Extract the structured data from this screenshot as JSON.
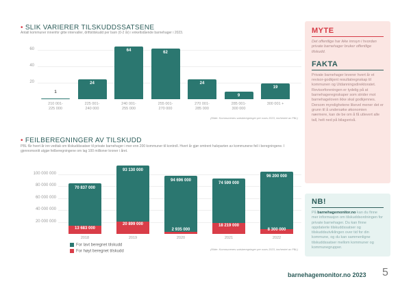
{
  "section1": {
    "title": "SLIK VARIERER TILSKUDDSSATSENE",
    "subtitle": "Antall kommuner innenfor gitte intervaller, driftstilskudd per barn (0-2 år) i enkeltstående barnehager i 2023.",
    "source": "(Kilde: Kommunenes satsberegninger per mars 2023, innhentet av PBL)"
  },
  "section2": {
    "title": "FEILBEREGNINGER AV TILSKUDD",
    "subtitle": "PBL får hvert år inn vedtak om tilskuddssatser til private barnehager i mer enn 200 kommuner til kontroll. Hvert år gjør omtrent halvparten av kommunene feil i beregningene. I gjennomsnitt utgjør feilberegningene om lag 100 millioner kroner i året.",
    "source": "(Kilde: Kommunenes satsberegninger per mars 2023, innhentet av PBL)"
  },
  "chart_data": [
    {
      "type": "bar",
      "categories": [
        "210 001 - 225 000",
        "225 001 - 240 000",
        "240 001 - 255 000",
        "255 001 - 270 000",
        "270 001 - 285 000",
        "285 001 - 300 000",
        "300 001 +"
      ],
      "values": [
        1,
        24,
        64,
        62,
        24,
        9,
        19
      ],
      "labels": [
        "1",
        "24",
        "64",
        "62",
        "24",
        "9",
        "19"
      ],
      "yticks": [
        "20",
        "40",
        "60"
      ],
      "ylim": [
        0,
        70
      ]
    },
    {
      "type": "bar",
      "stacked": true,
      "categories": [
        "2018",
        "2019",
        "2020",
        "2021",
        "2022"
      ],
      "series": [
        {
          "name": "For lavt beregnet tilskudd",
          "color": "#2b7770",
          "values": [
            70837000,
            93130000,
            94696000,
            74599000,
            96200000
          ],
          "labels": [
            "70 837 000",
            "93 130 000",
            "94 696 000",
            "74 599 000",
            "96 200 000"
          ]
        },
        {
          "name": "For høyt beregnet tilskudd",
          "color": "#d93d48",
          "values": [
            13683000,
            20899000,
            2935000,
            18219000,
            8300000
          ],
          "labels": [
            "13 683 000",
            "20 899 000",
            "2 935 000",
            "18 219 000",
            "8 300 000"
          ]
        }
      ],
      "yticks": [
        "20 000 000",
        "40 000 000",
        "60 000 000",
        "80 000 000",
        "100 000 000"
      ],
      "ylim": [
        0,
        120000000
      ]
    }
  ],
  "myte": {
    "title": "MYTE",
    "text": "Det offentlige har ikke innsyn i hvordan private barnehager bruker offentlige tilskudd."
  },
  "fakta": {
    "title": "FAKTA",
    "text": "Private barnehager leverer hvert år et revisor-godkjent resultatregnskap til kommunen og Utdanningsdirektoratet. Revisorforeningen er tydelig på at barnehageregnskaper som strider mot barnehageloven ikke skal godkjennes. Dersom myndighetene likevel mener det er grunn til å undersøke økonomien nærmere, kan de be om å få utlevert alle tall, helt ned på bilagsnivå."
  },
  "nb": {
    "title": "NB!",
    "pre": "På ",
    "link": "barnehagemonitor.no",
    "text": " kan du finne mer informasjon om tilskuddsordningen for private barnehager. Du kan finne oppdaterte tilskuddssatser og tilskuddsutviklingen over tid for din kommune, og du kan sammenligne tilskuddssatser mellom kommuner og kommunegrupper."
  },
  "footer": {
    "site": "barnehagemonitor.no 2023",
    "page": "5"
  }
}
